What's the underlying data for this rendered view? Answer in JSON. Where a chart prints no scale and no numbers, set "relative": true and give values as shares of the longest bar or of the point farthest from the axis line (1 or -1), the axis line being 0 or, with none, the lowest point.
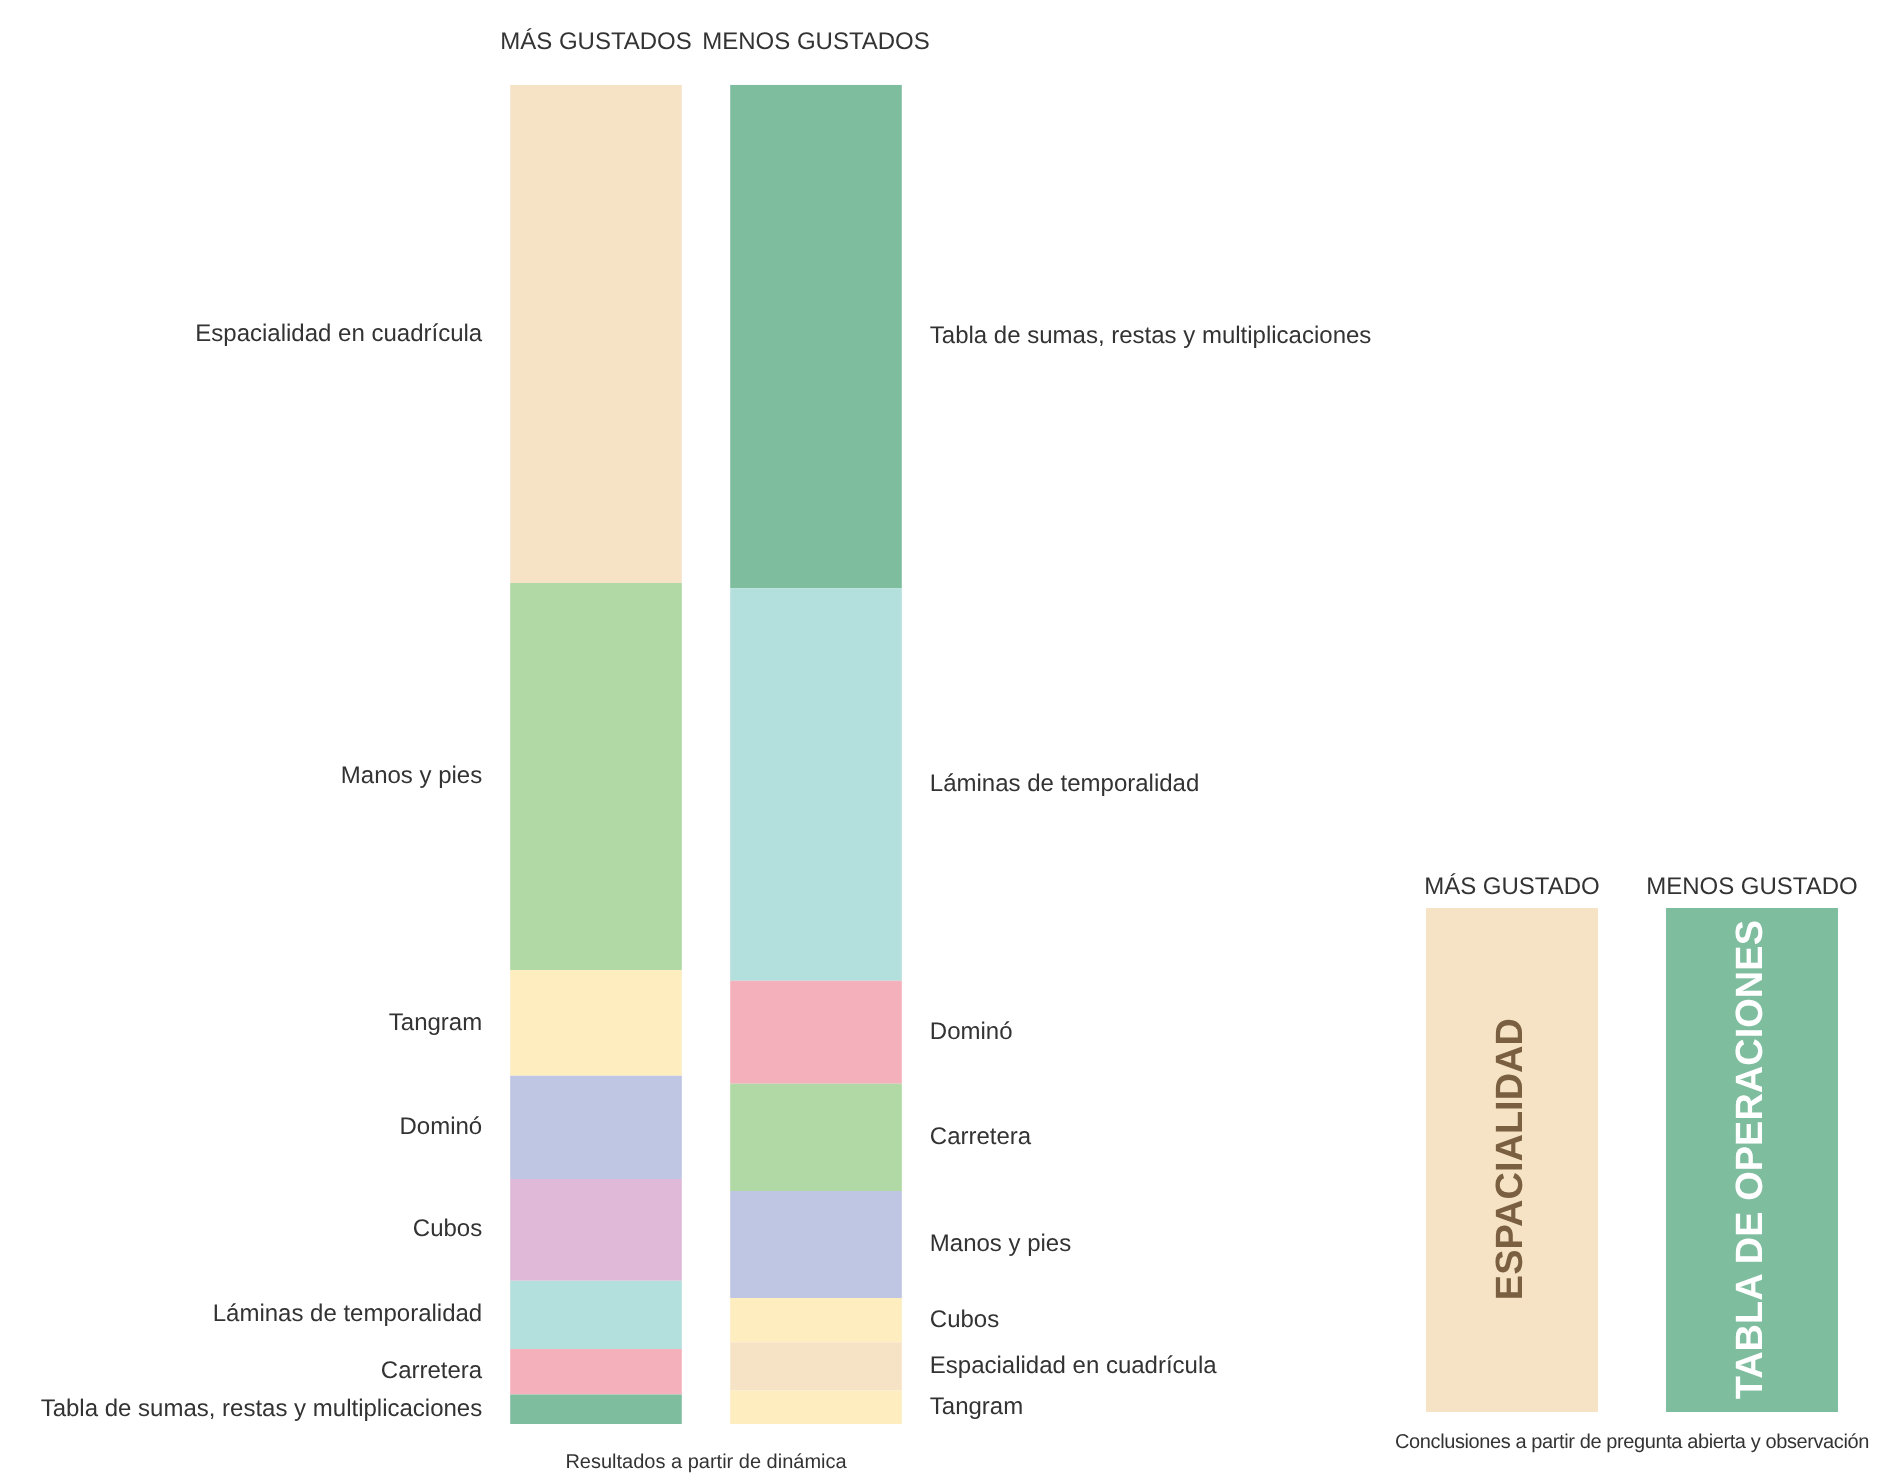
{
  "chart_data": [
    {
      "type": "bar",
      "stacked": true,
      "relative": true,
      "categories": [
        "MÁS GUSTADOS",
        "MENOS GUSTADOS"
      ],
      "xlabel": "Resultados a partir de dinámica",
      "series": [
        {
          "values": [
            0.022,
            0.025
          ],
          "colors": [
            "#7fbd9f",
            "#fdedbf"
          ]
        },
        {
          "values": [
            0.034,
            0.036
          ],
          "colors": [
            "#f5b1bb",
            "#f6e3c6"
          ]
        },
        {
          "values": [
            0.051,
            0.033
          ],
          "colors": [
            "#b3dfdc",
            "#fdedbf"
          ]
        },
        {
          "values": [
            0.076,
            0.08
          ],
          "colors": [
            "#e0b9d9",
            "#bfc6e4"
          ]
        },
        {
          "values": [
            0.077,
            0.08
          ],
          "colors": [
            "#bfc6e4",
            "#b0d9a6"
          ]
        },
        {
          "values": [
            0.079,
            0.077
          ],
          "colors": [
            "#fdedbf",
            "#f5b1bb"
          ]
        },
        {
          "values": [
            0.289,
            0.293
          ],
          "colors": [
            "#b0d9a6",
            "#b3dfdc"
          ]
        },
        {
          "values": [
            0.372,
            0.376
          ],
          "colors": [
            "#f6e3c6",
            "#7fbd9f"
          ]
        }
      ],
      "annotations": [
        "Tabla de sumas, restas y multiplicaciones",
        "Carretera",
        "Láminas de temporalidad",
        "Cubos",
        "Dominó",
        "Tangram",
        "Manos y pies",
        "Espacialidad en cuadrícula",
        "Tangram",
        "Espacialidad en cuadrícula",
        "Cubos",
        "Manos y pies",
        "Carretera",
        "Dominó",
        "Láminas de temporalidad",
        "Tabla de sumas, restas y multiplicaciones"
      ]
    },
    {
      "type": "other",
      "categories": [
        "MÁS GUSTADO",
        "MENOS GUSTADO"
      ],
      "colors": [
        "#f6e3c6",
        "#7fbd9f"
      ],
      "annotations": [
        "ESPACIALIDAD",
        "TABLA DE OPERACIONES"
      ],
      "xlabel": "Conclusiones a partir de pregunta abierta y observación"
    }
  ]
}
